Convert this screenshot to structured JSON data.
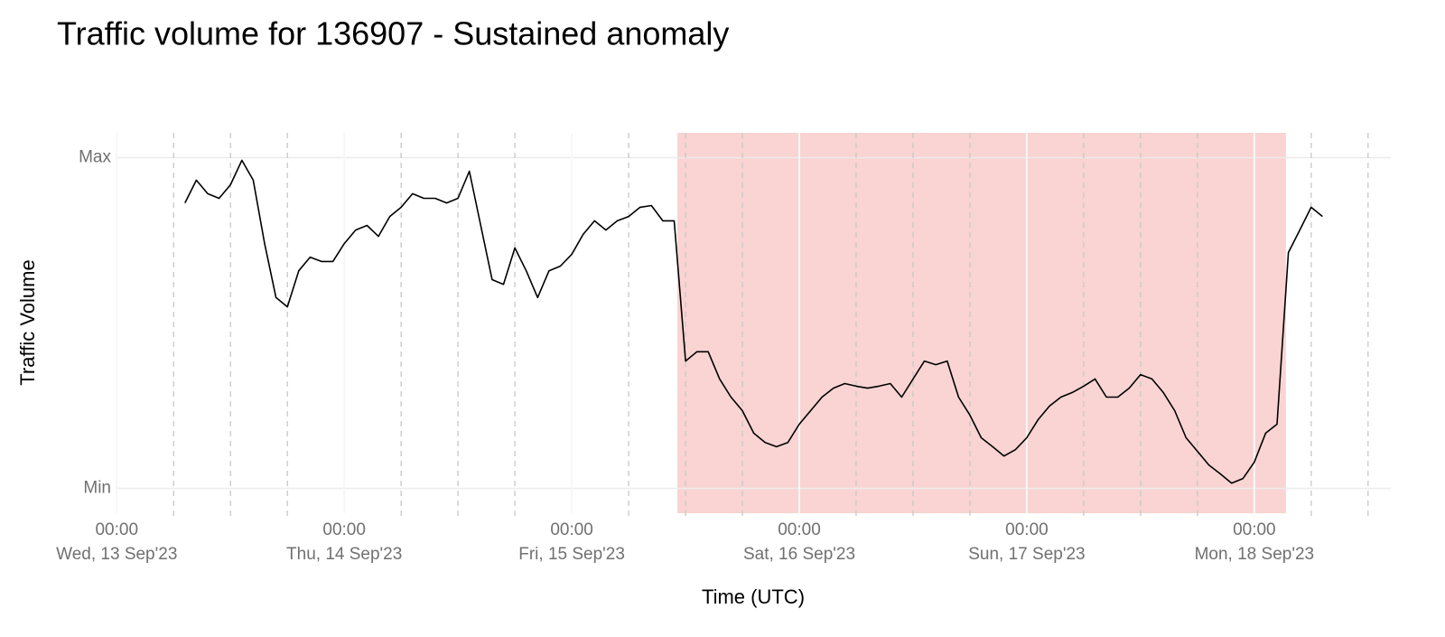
{
  "chart_data": {
    "type": "line",
    "title": "Traffic volume for 136907 - Sustained anomaly",
    "x_label": "Time (UTC)",
    "y_label": "Traffic Volume",
    "xlim": [
      -0.005,
      5.6
    ],
    "ylim": [
      -0.075,
      1.075
    ],
    "xticks": [
      {
        "value": 0,
        "label": [
          "00:00",
          "Wed, 13 Sep'23"
        ]
      },
      {
        "value": 1,
        "label": [
          "00:00",
          "Thu, 14 Sep'23"
        ]
      },
      {
        "value": 2,
        "label": [
          "00:00",
          "Fri, 15 Sep'23"
        ]
      },
      {
        "value": 3,
        "label": [
          "00:00",
          "Sat, 16 Sep'23"
        ]
      },
      {
        "value": 4,
        "label": [
          "00:00",
          "Sun, 17 Sep'23"
        ]
      },
      {
        "value": 5,
        "label": [
          "00:00",
          "Mon, 18 Sep'23"
        ]
      }
    ],
    "minor_xticks": [
      0.25,
      0.5,
      0.75,
      1.25,
      1.5,
      1.75,
      2.25,
      2.5,
      2.75,
      3.25,
      3.5,
      3.75,
      4.25,
      4.5,
      4.75,
      5.25,
      5.5
    ],
    "yticks": [
      {
        "value": 1,
        "label": "Max"
      },
      {
        "value": 0,
        "label": "Min"
      }
    ],
    "grid": true,
    "anomaly": {
      "start": 2.464,
      "end": 5.139,
      "color": "#f9d4d2"
    },
    "series": [
      {
        "color": "#000000",
        "x": [
          0.3,
          0.35,
          0.4,
          0.45,
          0.5,
          0.55,
          0.6,
          0.65,
          0.7,
          0.75,
          0.8,
          0.85,
          0.9,
          0.95,
          1.0,
          1.05,
          1.1,
          1.15,
          1.2,
          1.25,
          1.3,
          1.35,
          1.4,
          1.45,
          1.5,
          1.55,
          1.6,
          1.65,
          1.7,
          1.75,
          1.8,
          1.85,
          1.9,
          1.95,
          2.0,
          2.05,
          2.1,
          2.15,
          2.2,
          2.25,
          2.3,
          2.35,
          2.4,
          2.45,
          2.5,
          2.55,
          2.6,
          2.65,
          2.7,
          2.75,
          2.8,
          2.85,
          2.9,
          2.95,
          3.0,
          3.05,
          3.1,
          3.15,
          3.2,
          3.25,
          3.3,
          3.35,
          3.4,
          3.45,
          3.5,
          3.55,
          3.6,
          3.65,
          3.7,
          3.75,
          3.8,
          3.85,
          3.9,
          3.95,
          4.0,
          4.05,
          4.1,
          4.15,
          4.2,
          4.25,
          4.3,
          4.35,
          4.4,
          4.45,
          4.5,
          4.55,
          4.6,
          4.65,
          4.7,
          4.75,
          4.8,
          4.85,
          4.9,
          4.95,
          5.0,
          5.05,
          5.1,
          5.15,
          5.2,
          5.25,
          5.3
        ],
        "values": [
          0.863,
          0.932,
          0.891,
          0.877,
          0.918,
          0.992,
          0.932,
          0.74,
          0.577,
          0.549,
          0.658,
          0.699,
          0.686,
          0.686,
          0.74,
          0.781,
          0.795,
          0.762,
          0.822,
          0.85,
          0.891,
          0.877,
          0.877,
          0.863,
          0.877,
          0.959,
          0.795,
          0.631,
          0.617,
          0.727,
          0.658,
          0.577,
          0.658,
          0.672,
          0.708,
          0.768,
          0.809,
          0.781,
          0.809,
          0.822,
          0.85,
          0.855,
          0.809,
          0.809,
          0.385,
          0.413,
          0.413,
          0.331,
          0.276,
          0.235,
          0.167,
          0.139,
          0.126,
          0.139,
          0.194,
          0.235,
          0.276,
          0.303,
          0.317,
          0.309,
          0.303,
          0.309,
          0.317,
          0.276,
          0.331,
          0.385,
          0.374,
          0.385,
          0.276,
          0.221,
          0.153,
          0.126,
          0.098,
          0.117,
          0.153,
          0.208,
          0.249,
          0.276,
          0.29,
          0.309,
          0.331,
          0.276,
          0.276,
          0.303,
          0.344,
          0.331,
          0.29,
          0.235,
          0.153,
          0.112,
          0.071,
          0.044,
          0.016,
          0.03,
          0.079,
          0.167,
          0.194,
          0.713,
          0.781,
          0.85,
          0.822
        ]
      }
    ]
  }
}
